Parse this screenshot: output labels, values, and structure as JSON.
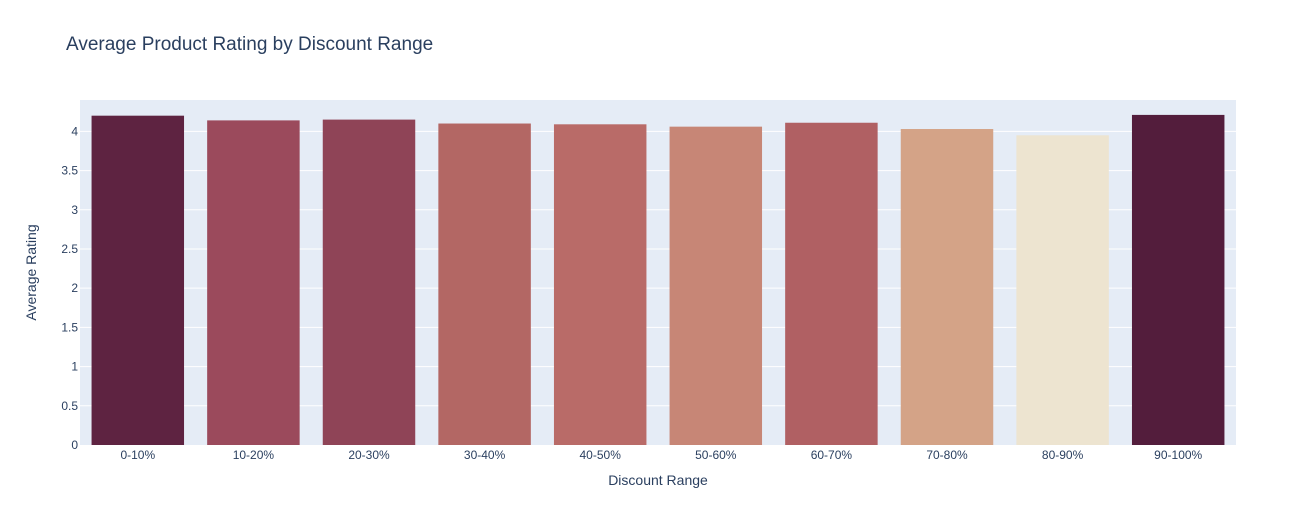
{
  "chart_data": {
    "type": "bar",
    "title": "Average Product Rating by Discount Range",
    "xlabel": "Discount Range",
    "ylabel": "Average Rating",
    "categories": [
      "0-10%",
      "10-20%",
      "20-30%",
      "30-40%",
      "40-50%",
      "50-60%",
      "60-70%",
      "70-80%",
      "80-90%",
      "90-100%"
    ],
    "values": [
      4.2,
      4.14,
      4.15,
      4.1,
      4.09,
      4.06,
      4.11,
      4.03,
      3.95,
      4.21
    ],
    "bar_colors": [
      "#5e2341",
      "#9b4a5c",
      "#8f4457",
      "#b36764",
      "#b96b68",
      "#c78676",
      "#b06063",
      "#d4a387",
      "#ede4d0",
      "#531d3c"
    ],
    "ylim": [
      0,
      4.4
    ],
    "yticks": [
      0,
      0.5,
      1,
      1.5,
      2,
      2.5,
      3,
      3.5,
      4
    ],
    "ytick_labels": [
      "0",
      "0.5",
      "1",
      "1.5",
      "2",
      "2.5",
      "3",
      "3.5",
      "4"
    ],
    "grid": true,
    "plot_background": "#e5ecf6",
    "grid_color": "#ffffff"
  }
}
